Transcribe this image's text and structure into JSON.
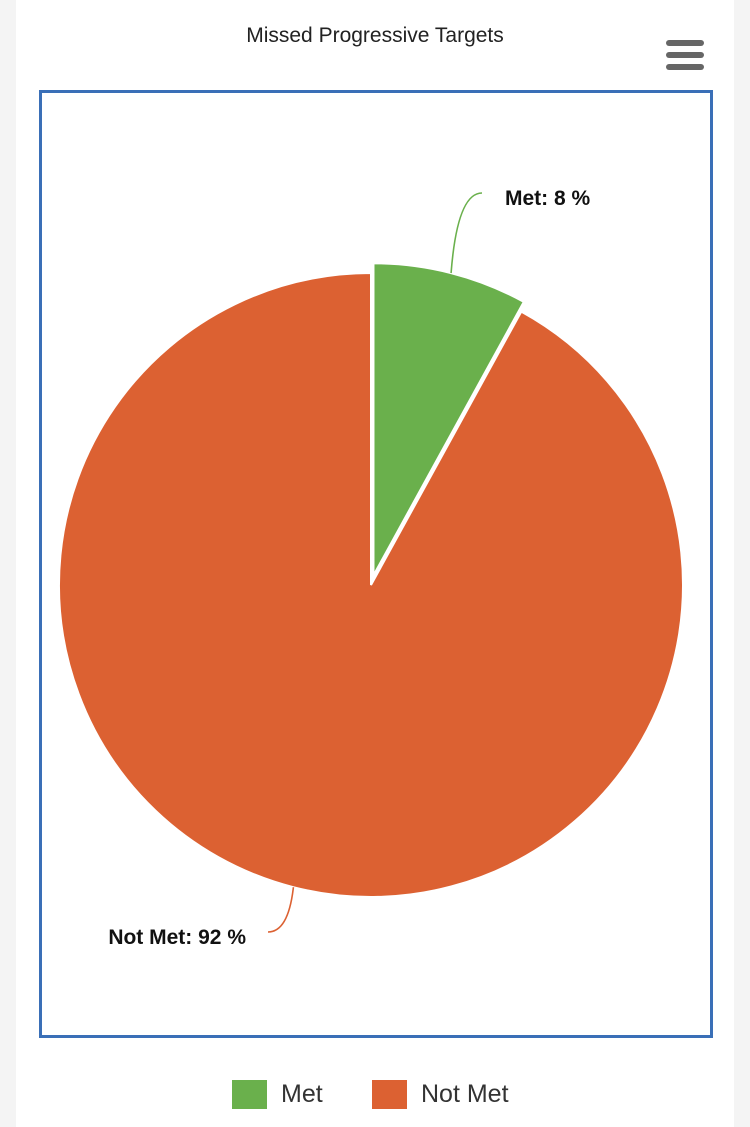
{
  "chart_data": {
    "type": "pie",
    "title": "Missed Progressive Targets",
    "categories": [
      "Met",
      "Not Met"
    ],
    "values": [
      8,
      92
    ],
    "unit": "%",
    "colors": [
      "#6ab04c",
      "#dc6132"
    ],
    "data_labels": [
      "Met: 8 %",
      "Not Met: 92 %"
    ],
    "legend_position": "bottom",
    "start_angle": "top, clockwise",
    "exploded_slice": "Met"
  },
  "toolbar": {
    "menu_icon": "hamburger-menu-icon"
  },
  "colors": {
    "frame_border": "#3a6fb7",
    "label_text": "#111111"
  }
}
